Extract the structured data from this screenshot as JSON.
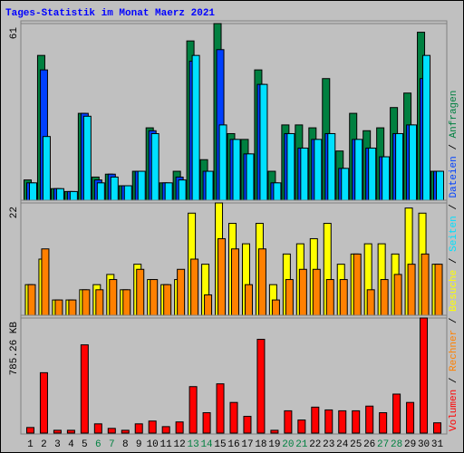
{
  "chart_data": [
    {
      "type": "bar",
      "title": "Tages-Statistik im Monat Maerz 2021",
      "ylim": [
        0,
        61
      ],
      "yticks": [
        61
      ],
      "series": [
        {
          "name": "Anfragen",
          "color": "#008040",
          "values": [
            7,
            50,
            4,
            3,
            30,
            8,
            9,
            5,
            10,
            25,
            6,
            10,
            55,
            14,
            61,
            23,
            21,
            45,
            10,
            26,
            26,
            25,
            42,
            17,
            30,
            24,
            25,
            32,
            37,
            58,
            10
          ]
        },
        {
          "name": "Dateien",
          "color": "#0040ff",
          "values": [
            6,
            45,
            4,
            3,
            30,
            7,
            9,
            5,
            10,
            24,
            6,
            8,
            48,
            10,
            52,
            21,
            16,
            40,
            6,
            23,
            18,
            21,
            23,
            11,
            21,
            18,
            15,
            23,
            26,
            42,
            10
          ]
        },
        {
          "name": "Seiten",
          "color": "#00e0ff",
          "values": [
            6,
            22,
            4,
            3,
            29,
            6,
            8,
            5,
            10,
            23,
            6,
            7,
            50,
            10,
            26,
            21,
            16,
            40,
            6,
            23,
            18,
            21,
            23,
            11,
            21,
            18,
            15,
            23,
            26,
            50,
            10
          ]
        }
      ]
    },
    {
      "type": "bar",
      "ylim": [
        0,
        22
      ],
      "yticks": [
        22
      ],
      "series": [
        {
          "name": "Besuche",
          "color": "#ffff00",
          "values": [
            6,
            11,
            3,
            3,
            5,
            6,
            8,
            5,
            10,
            7,
            6,
            7,
            20,
            10,
            22,
            18,
            14,
            18,
            6,
            12,
            14,
            15,
            18,
            10,
            12,
            14,
            14,
            12,
            21,
            20,
            10
          ]
        },
        {
          "name": "Rechner",
          "color": "#ff8000",
          "values": [
            6,
            13,
            3,
            3,
            5,
            5,
            7,
            5,
            9,
            7,
            6,
            9,
            11,
            4,
            15,
            13,
            6,
            13,
            3,
            7,
            9,
            9,
            7,
            7,
            12,
            5,
            7,
            8,
            10,
            12,
            10
          ]
        }
      ]
    },
    {
      "type": "bar",
      "ylim": [
        0,
        785.26
      ],
      "yticks": [
        {
          "value": 785.26,
          "label": "785.26 KB"
        }
      ],
      "series": [
        {
          "name": "Volumen",
          "color": "#ff0000",
          "values": [
            38,
            412,
            19,
            19,
            602,
            63,
            32,
            19,
            63,
            82,
            44,
            76,
            317,
            139,
            336,
            209,
            114,
            640,
            19,
            152,
            89,
            177,
            158,
            152,
            152,
            184,
            139,
            266,
            209,
            785.26,
            70
          ]
        }
      ],
      "categories": [
        "1",
        "2",
        "3",
        "4",
        "5",
        "6",
        "7",
        "8",
        "9",
        "10",
        "11",
        "12",
        "13",
        "14",
        "15",
        "16",
        "17",
        "18",
        "19",
        "20",
        "21",
        "22",
        "23",
        "24",
        "25",
        "26",
        "27",
        "28",
        "29",
        "30",
        "31"
      ],
      "category_colors": [
        "#000000",
        "#000000",
        "#000000",
        "#000000",
        "#000000",
        "#008040",
        "#008040",
        "#000000",
        "#000000",
        "#000000",
        "#000000",
        "#000000",
        "#008040",
        "#008040",
        "#000000",
        "#000000",
        "#000000",
        "#000000",
        "#000000",
        "#008040",
        "#008040",
        "#000000",
        "#000000",
        "#000000",
        "#000000",
        "#000000",
        "#008040",
        "#008040",
        "#000000",
        "#000000",
        "#000000"
      ]
    }
  ]
}
